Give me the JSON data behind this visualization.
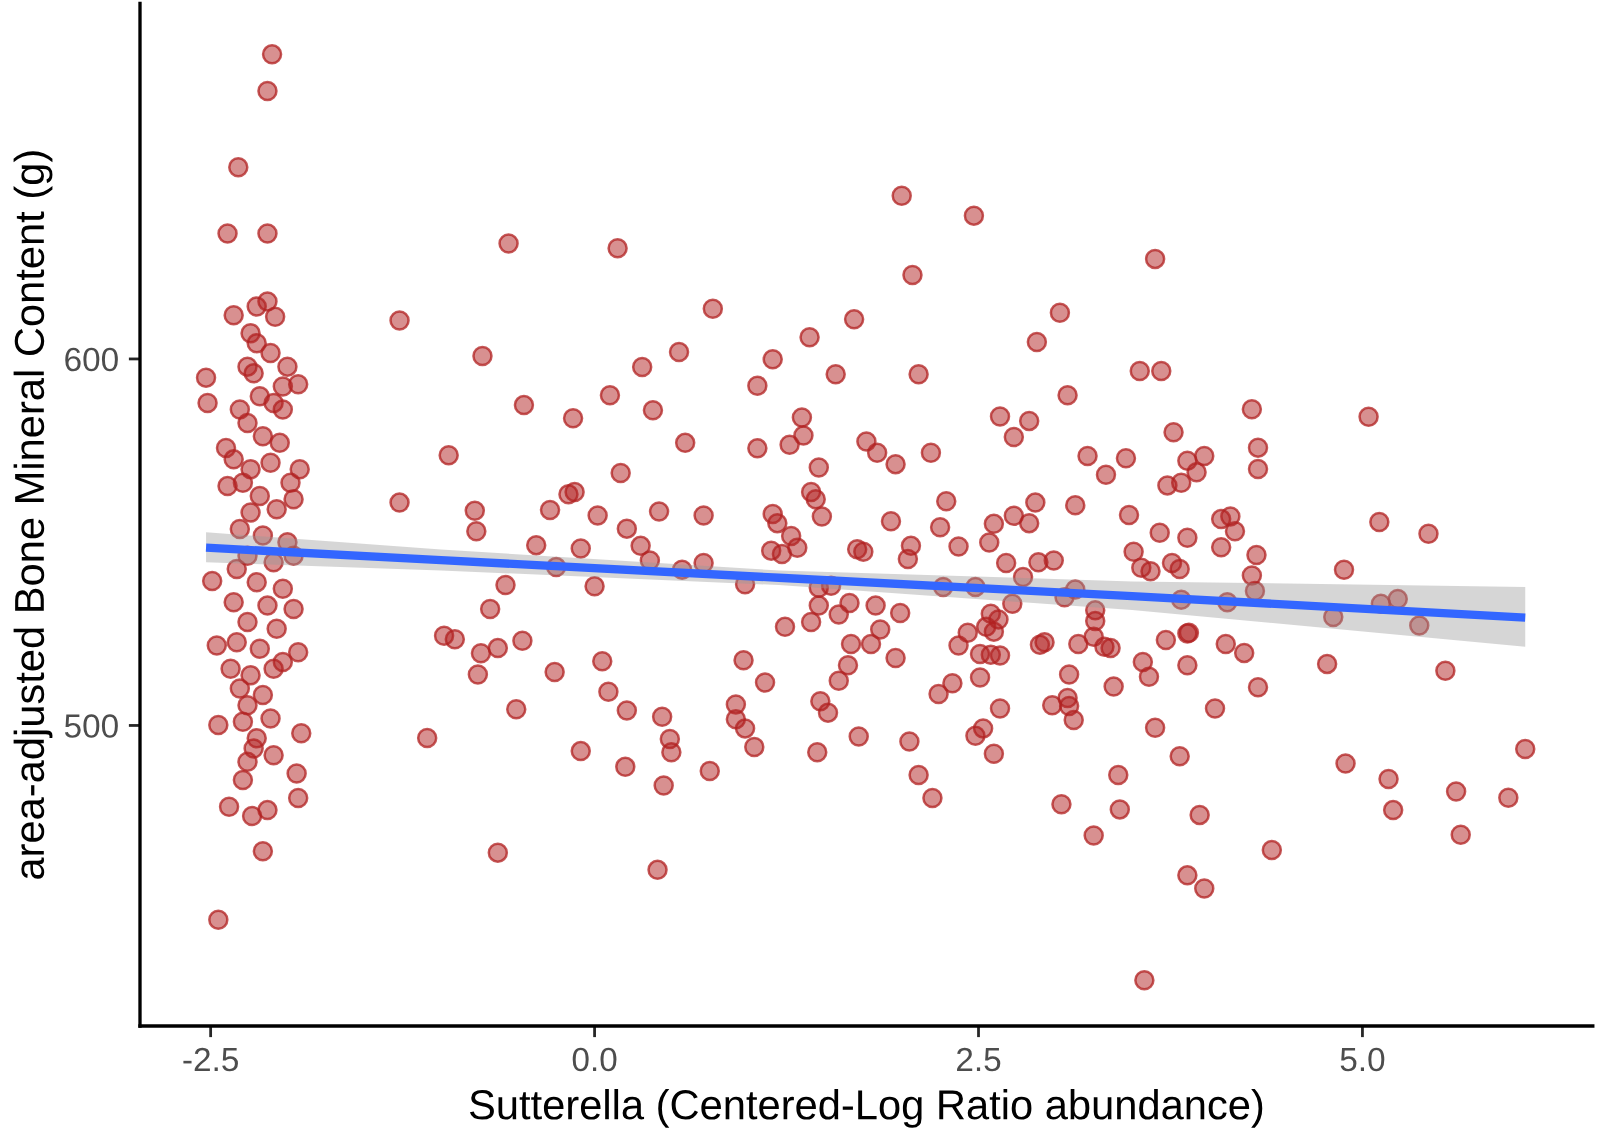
{
  "chart_data": {
    "type": "scatter",
    "xlabel": "Sutterella (Centered-Log Ratio abundance)",
    "ylabel": "area-adjusted Bone Mineral Content (g)",
    "xlim": [
      -2.96,
      6.5
    ],
    "ylim": [
      418,
      697
    ],
    "xticks": [
      {
        "value": -2.5,
        "label": "-2.5"
      },
      {
        "value": 0,
        "label": "0.0"
      },
      {
        "value": 2.5,
        "label": "2.5"
      },
      {
        "value": 5,
        "label": "5.0"
      }
    ],
    "yticks": [
      500,
      600
    ],
    "grid": false,
    "series": [
      {
        "marker": "circle",
        "color": "#b22222",
        "x": [
          -2.1,
          -2.13,
          -2.32,
          -2.39,
          -2.13,
          -2.35,
          -2.2,
          -2.13,
          -2.08,
          -2.53,
          -2.52,
          -2.0,
          -1.93,
          -2.4,
          -1.27,
          -1.27,
          -2.49,
          -2.46,
          -1.93,
          -2.45,
          -1.91,
          -2.38,
          -2.29,
          -1.94,
          -1.93,
          -2.23,
          -2.13,
          -2.16,
          -2.45,
          -2.24,
          -2.2,
          -2.26,
          -2.11,
          -2.22,
          -2.03,
          -2.18,
          -2.31,
          -2.09,
          -2.26,
          -2.03,
          -2.16,
          -2.05,
          -2.35,
          -2.24,
          -2.11,
          -1.92,
          -1.98,
          -2.29,
          -2.18,
          -2.39,
          -2.07,
          -2.24,
          -1.96,
          -2.31,
          -2.16,
          -2.0,
          -2.26,
          -2.09,
          -1.96,
          -2.33,
          -2.2,
          -2.03,
          -2.35,
          -2.13,
          -1.96,
          -2.26,
          -2.07,
          -2.33,
          -2.18,
          -2.03,
          -2.37,
          -2.24,
          -2.09,
          -2.31,
          -2.16,
          -2.26,
          -2.11,
          -2.29,
          -2.2,
          -2.09,
          -2.26,
          -2.22,
          -0.56,
          0.15,
          0.77,
          -0.73,
          0.55,
          0.31,
          1.16,
          1.06,
          -0.46,
          0.1,
          -0.14,
          0.38,
          0.59,
          1.06,
          1.27,
          -0.95,
          0.17,
          -0.78,
          -0.77,
          -0.29,
          -0.17,
          -0.13,
          0.02,
          0.21,
          0.42,
          0.71,
          1.16,
          1.19,
          -0.38,
          -0.09,
          0.3,
          0.36,
          0.57,
          0.71,
          1.15,
          1.22,
          1.28,
          -0.25,
          -0.58,
          0.0,
          0.98,
          -0.68,
          1.24,
          -0.98,
          -0.91,
          -0.74,
          -0.63,
          -0.47,
          -0.76,
          -0.26,
          0.05,
          0.97,
          1.11,
          0.09,
          -0.51,
          0.21,
          0.44,
          0.92,
          0.92,
          0.98,
          1.04,
          -1.09,
          0.49,
          0.5,
          -0.09,
          0.2,
          0.45,
          0.75,
          -0.63,
          0.41,
          2.0,
          2.47,
          2.07,
          3.65,
          1.69,
          3.03,
          1.4,
          2.88,
          1.57,
          2.11,
          3.55,
          3.69,
          3.08,
          1.35,
          1.36,
          2.64,
          2.83,
          2.73,
          3.77,
          1.77,
          1.84,
          1.46,
          1.96,
          2.19,
          3.21,
          3.46,
          3.33,
          3.86,
          3.73,
          3.82,
          1.41,
          1.44,
          1.48,
          1.93,
          2.29,
          2.25,
          2.73,
          2.87,
          2.83,
          3.13,
          3.48,
          3.68,
          3.86,
          2.6,
          2.57,
          1.32,
          1.71,
          1.75,
          2.06,
          2.04,
          2.37,
          2.68,
          2.79,
          2.89,
          2.99,
          3.51,
          3.56,
          3.62,
          3.76,
          3.81,
          1.46,
          1.54,
          2.27,
          2.48,
          3.13,
          3.82,
          1.46,
          1.66,
          1.83,
          1.59,
          1.99,
          2.72,
          3.06,
          3.26,
          1.41,
          1.86,
          1.67,
          1.8,
          2.37,
          2.43,
          2.58,
          2.63,
          2.55,
          2.6,
          2.51,
          2.58,
          2.64,
          2.9,
          2.93,
          3.15,
          3.26,
          3.25,
          3.32,
          3.36,
          3.72,
          3.86,
          1.96,
          1.65,
          1.59,
          2.51,
          2.33,
          2.24,
          3.57,
          3.61,
          3.86,
          3.09,
          3.38,
          1.47,
          1.52,
          2.64,
          2.98,
          3.08,
          3.09,
          3.12,
          3.65,
          3.81,
          1.72,
          2.05,
          2.48,
          2.53,
          2.6,
          1.45,
          2.11,
          2.2,
          3.41,
          3.04,
          3.42,
          3.25,
          3.86,
          3.94,
          3.58,
          4.28,
          5.04,
          3.97,
          4.32,
          4.32,
          3.92,
          4.08,
          4.14,
          4.17,
          4.08,
          4.31,
          5.11,
          5.43,
          4.28,
          4.3,
          4.88,
          4.12,
          4.81,
          5.12,
          5.23,
          5.37,
          3.87,
          4.11,
          4.23,
          4.77,
          4.32,
          5.54,
          4.04,
          4.89,
          5.17,
          6.06,
          5.61,
          5.95,
          5.2,
          5.64,
          4.41,
          3.97
        ],
        "values": [
          683.1,
          673.1,
          652.3,
          634.2,
          634.2,
          611.9,
          614.3,
          615.7,
          611.5,
          594.9,
          588.0,
          597.9,
          593.1,
          575.7,
          610.5,
          560.8,
          539.4,
          521.8,
          520.0,
          500.1,
          497.9,
          477.8,
          485.1,
          486.9,
          480.2,
          475.3,
          476.9,
          465.7,
          447.0,
          607.0,
          604.3,
          597.9,
          601.6,
          596.1,
          592.5,
          589.8,
          586.2,
          588.0,
          582.5,
          586.2,
          578.9,
          577.1,
          572.6,
          569.9,
          571.7,
          569.9,
          566.2,
          566.2,
          562.6,
          565.3,
          559.0,
          558.1,
          561.7,
          553.6,
          551.8,
          550.0,
          546.3,
          544.5,
          546.3,
          542.7,
          539.1,
          537.3,
          533.6,
          532.7,
          531.8,
          528.2,
          526.4,
          522.7,
          520.9,
          517.3,
          515.5,
          513.7,
          515.5,
          510.1,
          508.3,
          505.5,
          501.9,
          501.0,
          496.5,
          491.9,
          490.1,
          493.7,
          631.5,
          630.2,
          613.7,
          600.8,
          601.9,
          597.8,
          599.9,
          592.7,
          587.4,
          590.1,
          583.8,
          586.0,
          577.1,
          575.6,
          576.6,
          573.7,
          568.9,
          558.6,
          553.0,
          558.8,
          563.1,
          563.7,
          557.3,
          553.7,
          558.4,
          557.3,
          557.7,
          555.2,
          549.2,
          548.3,
          549.0,
          545.0,
          542.5,
          544.3,
          547.7,
          546.8,
          551.7,
          543.2,
          538.3,
          538.0,
          538.5,
          531.8,
          526.9,
          524.5,
          523.5,
          519.7,
          521.1,
          523.1,
          513.9,
          514.6,
          517.5,
          517.8,
          511.7,
          509.2,
          504.4,
          504.1,
          502.4,
          505.7,
          501.7,
          499.2,
          494.1,
          496.6,
          496.3,
          492.7,
          493.0,
          488.7,
          483.6,
          487.6,
          465.3,
          460.6,
          644.5,
          639.1,
          622.9,
          627.3,
          610.8,
          612.6,
          605.9,
          604.6,
          595.8,
          595.8,
          596.7,
          596.7,
          590.1,
          584.0,
          579.1,
          584.3,
          583.1,
          578.7,
          580.0,
          577.5,
          574.4,
          570.4,
          571.3,
          574.4,
          573.5,
          572.9,
          568.4,
          572.2,
          565.5,
          566.2,
          563.7,
          561.7,
          557.0,
          555.7,
          561.2,
          554.1,
          557.2,
          560.8,
          555.2,
          560.1,
          557.4,
          552.6,
          551.2,
          555.0,
          549.9,
          548.5,
          548.1,
          547.4,
          549.0,
          545.4,
          548.8,
          544.3,
          540.5,
          544.5,
          545.0,
          547.4,
          543.0,
          542.1,
          544.3,
          542.7,
          537.6,
          538.1,
          537.8,
          537.8,
          537.1,
          534.3,
          532.7,
          533.4,
          532.7,
          530.3,
          530.7,
          533.2,
          535.0,
          531.4,
          528.2,
          526.2,
          522.2,
          522.2,
          521.8,
          525.3,
          530.5,
          528.9,
          526.9,
          525.6,
          519.5,
          519.3,
          519.1,
          522.0,
          522.7,
          522.2,
          528.5,
          524.2,
          521.5,
          521.1,
          523.3,
          525.1,
          518.4,
          516.4,
          512.2,
          513.1,
          511.5,
          508.6,
          517.3,
          513.3,
          516.4,
          513.9,
          510.6,
          506.6,
          503.5,
          504.6,
          505.5,
          507.5,
          505.3,
          501.5,
          499.4,
          491.6,
          497.0,
          495.6,
          497.2,
          499.2,
          492.3,
          492.7,
          486.5,
          480.2,
          486.5,
          478.5,
          477.1,
          470.0,
          459.1,
          475.6,
          430.5,
          586.3,
          584.2,
          573.5,
          575.8,
          570.0,
          569.1,
          556.3,
          557.0,
          553.0,
          548.6,
          546.5,
          555.5,
          552.3,
          540.9,
          536.7,
          542.5,
          533.6,
          529.6,
          533.2,
          534.5,
          527.3,
          525.3,
          522.2,
          519.8,
          516.8,
          510.4,
          514.9,
          504.6,
          489.6,
          485.4,
          493.6,
          482.0,
          480.3,
          476.9,
          470.2,
          466.0,
          455.5
        ]
      },
      {
        "type": "line",
        "color": "#3366ff",
        "x": [
          -2.53,
          -1.0,
          1.2,
          3.5,
          6.06
        ],
        "values": [
          548.5,
          545.1,
          540.3,
          535.3,
          529.4
        ],
        "lower": [
          544.5,
          542.3,
          538.3,
          531.5,
          521.5
        ],
        "upper": [
          552.7,
          548.0,
          542.3,
          539.3,
          537.8
        ]
      }
    ]
  }
}
